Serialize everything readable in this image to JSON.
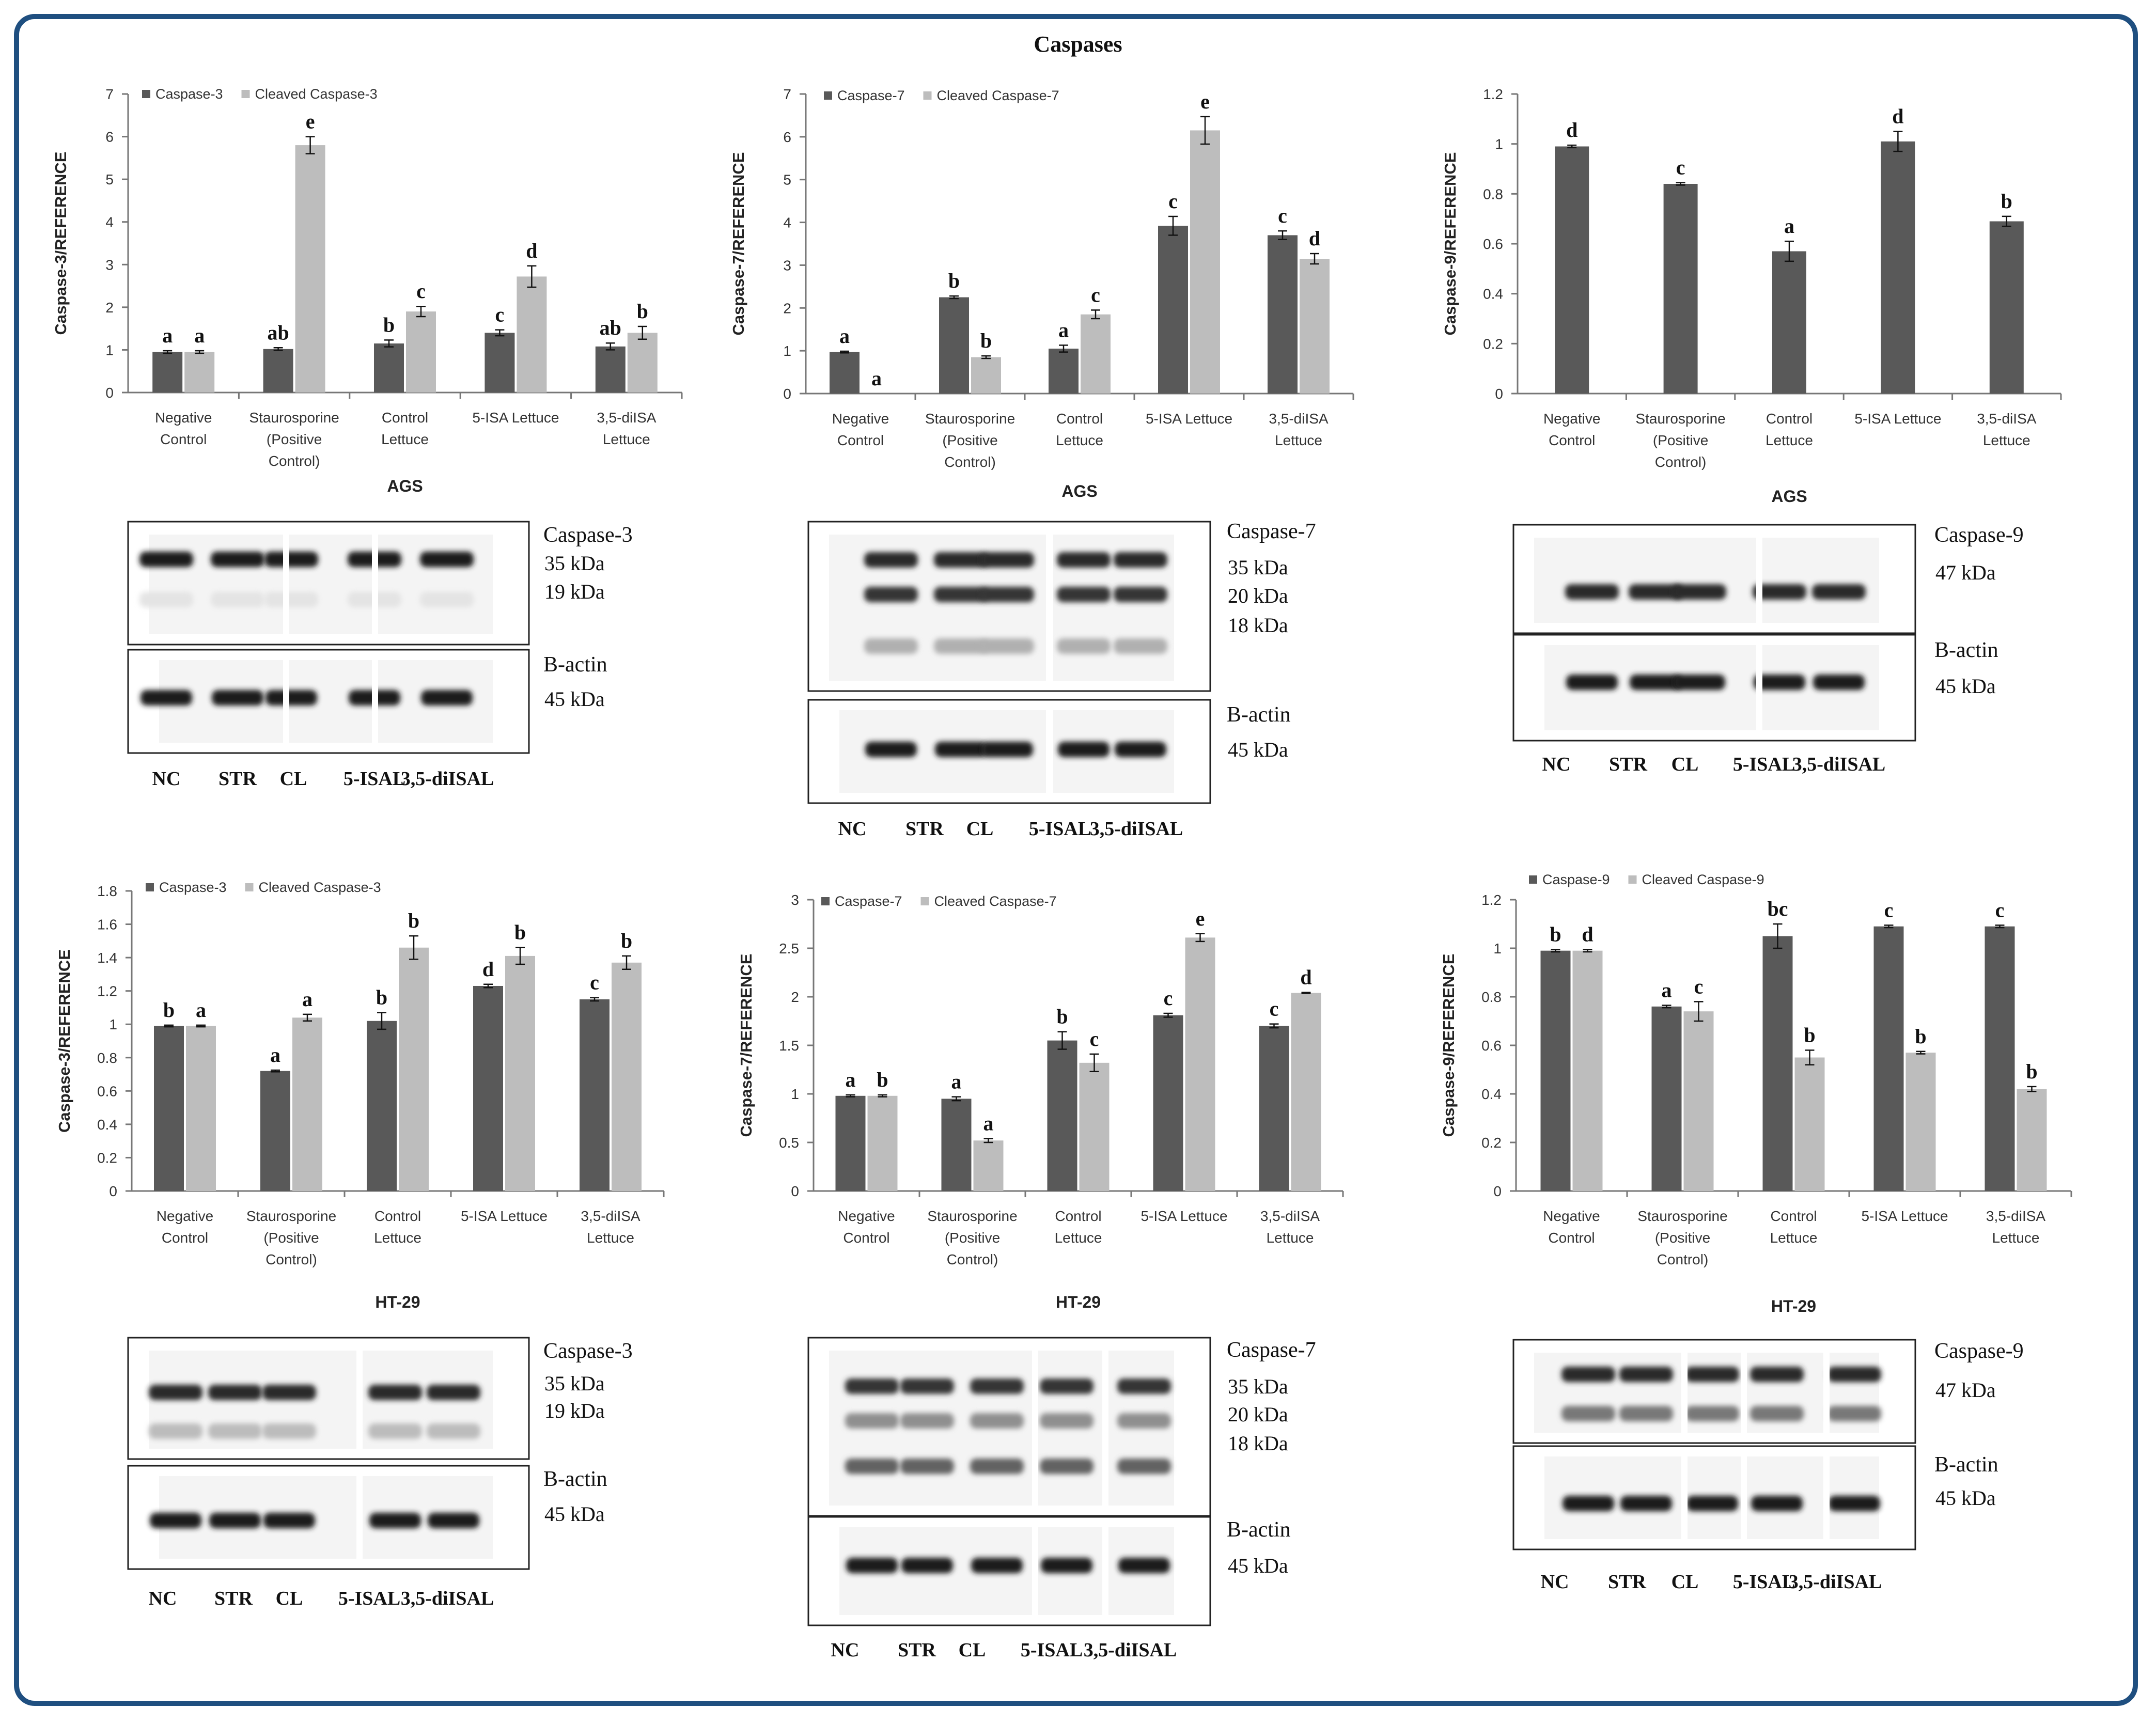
{
  "figure_title": "Caspases",
  "colors": {
    "dark": "#595959",
    "light": "#bdbdbd",
    "frame": "#1f4f80"
  },
  "chart_data": [
    {
      "type": "bar",
      "cell": "AGS",
      "ylabel": "Caspase-3/REFERENCE",
      "ylim": [
        0,
        7
      ],
      "yticks": [
        "0",
        "1",
        "2",
        "3",
        "4",
        "5",
        "6",
        "7"
      ],
      "categories": [
        [
          "Negative",
          "Control"
        ],
        [
          "Staurosporine",
          "(Positive",
          "Control)"
        ],
        [
          "Control",
          "Lettuce"
        ],
        [
          "5-ISA Lettuce"
        ],
        [
          "3,5-diISA",
          "Lettuce"
        ]
      ],
      "series": [
        {
          "name": "Caspase-3",
          "color": "dark",
          "values": [
            0.95,
            1.02,
            1.15,
            1.4,
            1.08
          ],
          "errors": [
            0.03,
            0.03,
            0.08,
            0.07,
            0.08
          ],
          "letters": [
            "a",
            "ab",
            "b",
            "c",
            "ab"
          ]
        },
        {
          "name": "Cleaved Caspase-3",
          "color": "light",
          "values": [
            0.95,
            5.8,
            1.9,
            2.72,
            1.4
          ],
          "errors": [
            0.03,
            0.2,
            0.12,
            0.25,
            0.15
          ],
          "letters": [
            "a",
            "e",
            "c",
            "d",
            "b"
          ]
        }
      ],
      "cell_label": "AGS"
    },
    {
      "type": "bar",
      "cell": "AGS",
      "ylabel": "Caspase-7/REFERENCE",
      "ylim": [
        0,
        7
      ],
      "yticks": [
        "0",
        "1",
        "2",
        "3",
        "4",
        "5",
        "6",
        "7"
      ],
      "categories": [
        [
          "Negative",
          "Control"
        ],
        [
          "Staurosporine",
          "(Positive",
          "Control)"
        ],
        [
          "Control",
          "Lettuce"
        ],
        [
          "5-ISA Lettuce"
        ],
        [
          "3,5-diISA",
          "Lettuce"
        ]
      ],
      "series": [
        {
          "name": "Caspase-7",
          "color": "dark",
          "values": [
            0.97,
            2.25,
            1.05,
            3.92,
            3.7
          ],
          "errors": [
            0.02,
            0.03,
            0.08,
            0.22,
            0.1
          ],
          "letters": [
            "a",
            "b",
            "a",
            "c",
            "c"
          ]
        },
        {
          "name": "Cleaved Caspase-7",
          "color": "light",
          "values": [
            0,
            0.85,
            1.85,
            6.15,
            3.15
          ],
          "errors": [
            0,
            0.03,
            0.1,
            0.32,
            0.12
          ],
          "letters": [
            "a",
            "b",
            "c",
            "e",
            "d"
          ]
        }
      ],
      "cell_label": "AGS"
    },
    {
      "type": "bar",
      "cell": "AGS",
      "ylabel": "Caspase-9/REFERENCE",
      "ylim": [
        0,
        1.2
      ],
      "yticks": [
        "0",
        "0.2",
        "0.4",
        "0.6",
        "0.8",
        "1",
        "1.2"
      ],
      "categories": [
        [
          "Negative",
          "Control"
        ],
        [
          "Staurosporine",
          "(Positive",
          "Control)"
        ],
        [
          "Control",
          "Lettuce"
        ],
        [
          "5-ISA Lettuce"
        ],
        [
          "3,5-diISA",
          "Lettuce"
        ]
      ],
      "series": [
        {
          "name": "",
          "color": "dark",
          "values": [
            0.99,
            0.84,
            0.57,
            1.01,
            0.69
          ],
          "errors": [
            0.005,
            0.005,
            0.04,
            0.04,
            0.02
          ],
          "letters": [
            "d",
            "c",
            "a",
            "d",
            "b"
          ]
        }
      ],
      "cell_label": "AGS"
    },
    {
      "type": "bar",
      "cell": "HT-29",
      "ylabel": "Caspase-3/REFERENCE",
      "ylim": [
        0,
        1.8
      ],
      "yticks": [
        "0",
        "0.2",
        "0.4",
        "0.6",
        "0.8",
        "1",
        "1.2",
        "1.4",
        "1.6",
        "1.8"
      ],
      "categories": [
        [
          "Negative",
          "Control"
        ],
        [
          "Staurosporine",
          "(Positive",
          "Control)"
        ],
        [
          "Control",
          "Lettuce"
        ],
        [
          "5-ISA Lettuce"
        ],
        [
          "3,5-diISA",
          "Lettuce"
        ]
      ],
      "series": [
        {
          "name": "Caspase-3",
          "color": "dark",
          "values": [
            0.99,
            0.72,
            1.02,
            1.23,
            1.15
          ],
          "errors": [
            0.005,
            0.005,
            0.05,
            0.01,
            0.01
          ],
          "letters": [
            "b",
            "a",
            "b",
            "d",
            "c"
          ]
        },
        {
          "name": "Cleaved Caspase-3",
          "color": "light",
          "values": [
            0.99,
            1.04,
            1.46,
            1.41,
            1.37
          ],
          "errors": [
            0.005,
            0.02,
            0.07,
            0.05,
            0.04
          ],
          "letters": [
            "a",
            "a",
            "b",
            "b",
            "b"
          ]
        }
      ],
      "cell_label": "HT-29"
    },
    {
      "type": "bar",
      "cell": "HT-29",
      "ylabel": "Caspase-7/REFERENCE",
      "ylim": [
        0,
        3
      ],
      "yticks": [
        "0",
        "0.5",
        "1",
        "1.5",
        "2",
        "2.5",
        "3"
      ],
      "categories": [
        [
          "Negative",
          "Control"
        ],
        [
          "Staurosporine",
          "(Positive",
          "Control)"
        ],
        [
          "Control",
          "Lettuce"
        ],
        [
          "5-ISA Lettuce"
        ],
        [
          "3,5-diISA",
          "Lettuce"
        ]
      ],
      "series": [
        {
          "name": "Caspase-7",
          "color": "dark",
          "values": [
            0.98,
            0.95,
            1.55,
            1.81,
            1.7
          ],
          "errors": [
            0.01,
            0.02,
            0.09,
            0.02,
            0.02
          ],
          "letters": [
            "a",
            "a",
            "b",
            "c",
            "c"
          ]
        },
        {
          "name": "Cleaved Caspase-7",
          "color": "light",
          "values": [
            0.98,
            0.52,
            1.32,
            2.61,
            2.04
          ],
          "errors": [
            0.01,
            0.02,
            0.09,
            0.04,
            0.005
          ],
          "letters": [
            "b",
            "a",
            "c",
            "e",
            "d"
          ]
        }
      ],
      "cell_label": "HT-29"
    },
    {
      "type": "bar",
      "cell": "HT-29",
      "ylabel": "Caspase-9/REFERENCE",
      "ylim": [
        0,
        1.2
      ],
      "yticks": [
        "0",
        "0.2",
        "0.4",
        "0.6",
        "0.8",
        "1",
        "1.2"
      ],
      "categories": [
        [
          "Negative",
          "Control"
        ],
        [
          "Staurosporine",
          "(Positive",
          "Control)"
        ],
        [
          "Control",
          "Lettuce"
        ],
        [
          "5-ISA Lettuce"
        ],
        [
          "3,5-diISA",
          "Lettuce"
        ]
      ],
      "series": [
        {
          "name": "Caspase-9",
          "color": "dark",
          "values": [
            0.99,
            0.76,
            1.05,
            1.09,
            1.09
          ],
          "errors": [
            0.005,
            0.005,
            0.05,
            0.005,
            0.005
          ],
          "letters": [
            "b",
            "a",
            "bc",
            "c",
            "c"
          ]
        },
        {
          "name": "Cleaved Caspase-9",
          "color": "light",
          "values": [
            0.99,
            0.74,
            0.55,
            0.57,
            0.42
          ],
          "errors": [
            0.005,
            0.04,
            0.03,
            0.005,
            0.01
          ],
          "letters": [
            "d",
            "c",
            "b",
            "b",
            "b"
          ]
        }
      ],
      "cell_label": "HT-29"
    }
  ],
  "blots": [
    {
      "top_label": "Caspase-3",
      "kda": [
        "35 kDa",
        "19 kDa"
      ],
      "ref_label": "B-actin",
      "ref_kda": "45 kDa",
      "lanes": [
        "NC",
        "STR",
        "CL",
        "5-ISAL",
        "3,5-diISAL"
      ]
    },
    {
      "top_label": "Caspase-7",
      "kda": [
        "35 kDa",
        "20 kDa",
        "18 kDa"
      ],
      "ref_label": "B-actin",
      "ref_kda": "45 kDa",
      "lanes": [
        "NC",
        "STR",
        "CL",
        "5-ISAL",
        "3,5-diISAL"
      ]
    },
    {
      "top_label": "Caspase-9",
      "kda": [
        "47 kDa"
      ],
      "ref_label": "B-actin",
      "ref_kda": "45 kDa",
      "lanes": [
        "NC",
        "STR",
        "CL",
        "5-ISAL",
        "3,5-diISAL"
      ]
    },
    {
      "top_label": "Caspase-3",
      "kda": [
        "35 kDa",
        "19 kDa"
      ],
      "ref_label": "B-actin",
      "ref_kda": "45 kDa",
      "lanes": [
        "NC",
        "STR",
        "CL",
        "5-ISAL",
        "3,5-diISAL"
      ]
    },
    {
      "top_label": "Caspase-7",
      "kda": [
        "35 kDa",
        "20 kDa",
        "18 kDa"
      ],
      "ref_label": "B-actin",
      "ref_kda": "45 kDa",
      "lanes": [
        "NC",
        "STR",
        "CL",
        "5-ISAL",
        "3,5-diISAL"
      ]
    },
    {
      "top_label": "Caspase-9",
      "kda": [
        "47 kDa"
      ],
      "ref_label": "B-actin",
      "ref_kda": "45 kDa",
      "lanes": [
        "NC",
        "STR",
        "CL",
        "5-ISAL",
        "3,5-diISAL"
      ]
    }
  ]
}
